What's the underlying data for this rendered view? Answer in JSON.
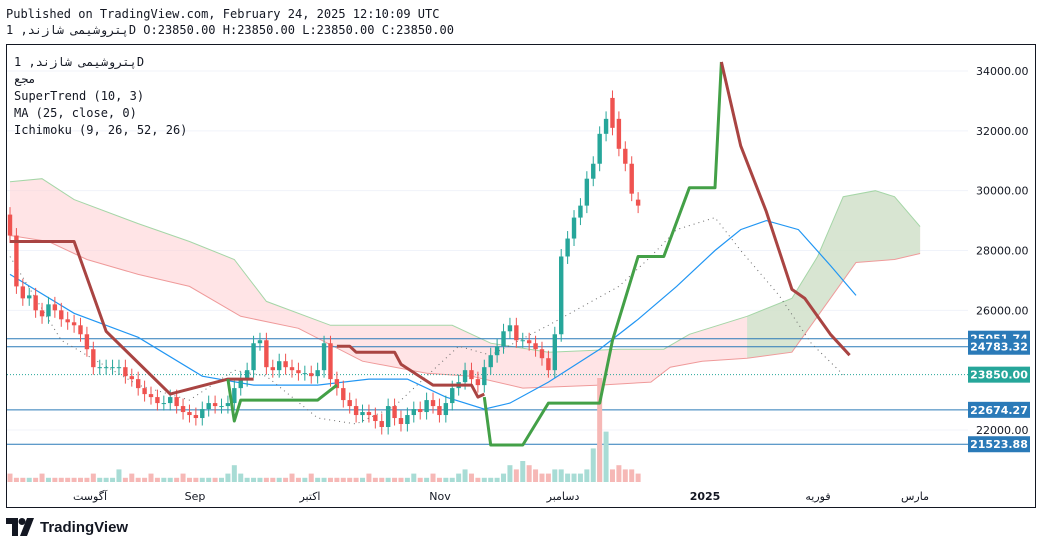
{
  "header": {
    "published": "Published on TradingView.com, February 24, 2025 12:10:09 UTC",
    "ohlc_line": "پتروشیمی شازند, 1D  O:23850.00 H:23850.00 L:23850.00 C:23850.00"
  },
  "legend": {
    "symbol": "پتروشیمی شازند, 1D",
    "sub": "مجع",
    "supertrend": "SuperTrend (10, 3)",
    "ma": "MA (25, close, 0)",
    "ichimoku": "Ichimoku (9, 26, 52, 26)"
  },
  "footer": {
    "brand": "TradingView"
  },
  "colors": {
    "up": "#26a69a",
    "down": "#ef5350",
    "supertrend_up": "#43a047",
    "supertrend_down": "#a94442",
    "ma": "#2196f3",
    "cloud_bull": "#c8e6c9",
    "cloud_bear": "#ffcdd2",
    "hline": "#2a7ab8"
  },
  "chart_data": {
    "type": "candlestick",
    "title": "پتروشیمی شازند, 1D",
    "x_ticks": [
      "آگوست",
      "Sep",
      "اکتبر",
      "Nov",
      "دسامبر",
      "2025",
      "فوریه",
      "مارس"
    ],
    "y_ticks": [
      "34000.00",
      "32000.00",
      "30000.00",
      "28000.00",
      "26000.00",
      "22000.00"
    ],
    "ylim": [
      20700,
      35400
    ],
    "price_labels": [
      {
        "value": 25051.74,
        "label": "25051.74",
        "color": "#2a7ab8"
      },
      {
        "value": 24783.32,
        "label": "24783.32",
        "color": "#2a7ab8"
      },
      {
        "value": 23850.0,
        "label": "23850.00",
        "color": "#26a69a"
      },
      {
        "value": 22674.27,
        "label": "22674.27",
        "color": "#2a7ab8"
      },
      {
        "value": 21523.88,
        "label": "21523.88",
        "color": "#2a7ab8"
      }
    ],
    "closes": [
      28500,
      26800,
      26400,
      26500,
      26000,
      25800,
      26200,
      26000,
      25700,
      25600,
      25500,
      25200,
      24700,
      24100,
      24100,
      24100,
      24100,
      24100,
      23800,
      23700,
      23400,
      23200,
      23100,
      22900,
      22900,
      23100,
      22800,
      22600,
      22500,
      22400,
      22700,
      22900,
      22800,
      22800,
      22900,
      23400,
      23700,
      24000,
      24900,
      25000,
      24100,
      24000,
      24300,
      24100,
      24000,
      23900,
      23900,
      23800,
      24000,
      24900,
      23700,
      23400,
      23000,
      22800,
      22500,
      22600,
      22500,
      22300,
      22100,
      22800,
      22400,
      22200,
      22500,
      22700,
      22600,
      23000,
      22800,
      22500,
      22900,
      23400,
      23600,
      24000,
      23700,
      23500,
      24100,
      24500,
      24800,
      25300,
      25500,
      25000,
      25000,
      24900,
      24700,
      24400,
      24000,
      25200,
      27800,
      28400,
      29100,
      29500,
      30400,
      30900,
      31900,
      32400,
      32100,
      31400,
      30900,
      29900,
      29500
    ],
    "opens": [
      29200,
      28500,
      26800,
      26400,
      26500,
      26000,
      25800,
      26200,
      26000,
      25700,
      25600,
      25500,
      25200,
      24700,
      24100,
      24100,
      24100,
      24100,
      24100,
      23800,
      23700,
      23400,
      23200,
      23100,
      22900,
      22900,
      23100,
      22800,
      22600,
      22500,
      22400,
      22700,
      22900,
      22800,
      22800,
      22900,
      23400,
      23700,
      24000,
      24900,
      25000,
      24100,
      24000,
      24300,
      24100,
      24000,
      23900,
      23900,
      23800,
      24000,
      24900,
      23700,
      23400,
      23000,
      22800,
      22500,
      22600,
      22500,
      22300,
      22100,
      22800,
      22400,
      22200,
      22500,
      22700,
      22600,
      23000,
      22800,
      22500,
      22900,
      23400,
      23600,
      24000,
      23700,
      23500,
      24100,
      24500,
      24800,
      25300,
      25500,
      25000,
      25000,
      24900,
      24700,
      24400,
      24000,
      25200,
      27800,
      28400,
      29100,
      29500,
      30400,
      30900,
      31900,
      33100,
      32400,
      31400,
      30900,
      29700
    ],
    "supertrend": [
      {
        "d": [
          [
            0,
            28300
          ],
          [
            10,
            28300
          ],
          [
            15,
            25300
          ],
          [
            25,
            23200
          ],
          [
            34,
            23700
          ],
          [
            38,
            23700
          ]
        ]
      },
      {
        "u": [
          [
            34,
            23700
          ],
          [
            35,
            22300
          ],
          [
            36,
            23000
          ],
          [
            48,
            23000
          ],
          [
            51,
            23500
          ]
        ]
      },
      {
        "d": [
          [
            51,
            24800
          ],
          [
            53,
            24800
          ],
          [
            54,
            24600
          ],
          [
            60,
            24600
          ],
          [
            61,
            24200
          ],
          [
            66,
            23500
          ],
          [
            72,
            23500
          ],
          [
            73,
            23100
          ],
          [
            74,
            23200
          ]
        ]
      },
      {
        "u": [
          [
            74,
            23100
          ],
          [
            75,
            21500
          ],
          [
            80,
            21500
          ],
          [
            84,
            22900
          ],
          [
            92,
            22900
          ],
          [
            94,
            25000
          ],
          [
            98,
            27800
          ],
          [
            102,
            27800
          ],
          [
            106,
            30100
          ],
          [
            110,
            30100
          ],
          [
            111,
            34300
          ]
        ]
      },
      {
        "d": [
          [
            111,
            34300
          ],
          [
            114,
            31500
          ],
          [
            118,
            29300
          ],
          [
            122,
            26700
          ],
          [
            124,
            26400
          ],
          [
            128,
            25200
          ],
          [
            131,
            24500
          ]
        ]
      }
    ],
    "ma": [
      [
        0,
        27200
      ],
      [
        10,
        25900
      ],
      [
        20,
        25100
      ],
      [
        30,
        23800
      ],
      [
        38,
        23500
      ],
      [
        48,
        23500
      ],
      [
        56,
        23700
      ],
      [
        62,
        23700
      ],
      [
        68,
        23100
      ],
      [
        74,
        22700
      ],
      [
        78,
        22900
      ],
      [
        84,
        23600
      ],
      [
        92,
        24700
      ],
      [
        98,
        25700
      ],
      [
        104,
        26800
      ],
      [
        110,
        28000
      ],
      [
        114,
        28700
      ],
      [
        118,
        29000
      ],
      [
        123,
        28700
      ],
      [
        128,
        27500
      ],
      [
        132,
        26500
      ]
    ],
    "cloud_upper": [
      [
        0,
        30300
      ],
      [
        5,
        30400
      ],
      [
        10,
        29700
      ],
      [
        20,
        28900
      ],
      [
        28,
        28300
      ],
      [
        35,
        27700
      ],
      [
        40,
        26300
      ],
      [
        50,
        25500
      ],
      [
        60,
        25500
      ],
      [
        69,
        25500
      ],
      [
        75,
        24900
      ],
      [
        84,
        24600
      ],
      [
        95,
        24700
      ],
      [
        102,
        24700
      ],
      [
        106,
        25200
      ],
      [
        115,
        25800
      ],
      [
        122,
        26400
      ],
      [
        126,
        27800
      ],
      [
        130,
        29800
      ],
      [
        135,
        30000
      ],
      [
        138,
        29800
      ],
      [
        142,
        28800
      ]
    ],
    "cloud_lower": [
      [
        0,
        28500
      ],
      [
        6,
        28300
      ],
      [
        12,
        27700
      ],
      [
        20,
        27200
      ],
      [
        28,
        26800
      ],
      [
        36,
        25800
      ],
      [
        45,
        25400
      ],
      [
        55,
        24300
      ],
      [
        65,
        23900
      ],
      [
        72,
        23800
      ],
      [
        80,
        23400
      ],
      [
        92,
        23500
      ],
      [
        100,
        23600
      ],
      [
        103,
        24100
      ],
      [
        108,
        24300
      ],
      [
        115,
        24400
      ],
      [
        122,
        24600
      ],
      [
        126,
        25800
      ],
      [
        132,
        27600
      ],
      [
        138,
        27700
      ],
      [
        142,
        27900
      ]
    ],
    "chikou": [
      [
        0,
        27800
      ],
      [
        8,
        25000
      ],
      [
        20,
        23500
      ],
      [
        28,
        23000
      ],
      [
        35,
        24000
      ],
      [
        40,
        23800
      ],
      [
        48,
        22400
      ],
      [
        54,
        22200
      ],
      [
        60,
        22800
      ],
      [
        65,
        23800
      ],
      [
        70,
        24800
      ],
      [
        75,
        24500
      ],
      [
        84,
        25500
      ],
      [
        95,
        26800
      ],
      [
        100,
        27800
      ],
      [
        104,
        28700
      ],
      [
        110,
        29100
      ],
      [
        114,
        28000
      ],
      [
        120,
        26500
      ],
      [
        125,
        24900
      ],
      [
        130,
        23850
      ]
    ],
    "volume": [
      2,
      1,
      1,
      1,
      1,
      2,
      1,
      1,
      1,
      1,
      1,
      1,
      1,
      2,
      1,
      1,
      1,
      3,
      1,
      2,
      1,
      1,
      2,
      1,
      1,
      1,
      1,
      2,
      1,
      1,
      1,
      1,
      1,
      1,
      2,
      4,
      2,
      1,
      1,
      1,
      1,
      1,
      1,
      1,
      2,
      1,
      1,
      2,
      1,
      1,
      1,
      1,
      1,
      1,
      1,
      1,
      2,
      1,
      1,
      1,
      1,
      1,
      1,
      2,
      1,
      1,
      2,
      1,
      1,
      1,
      2,
      3,
      2,
      1,
      1,
      1,
      1,
      2,
      4,
      3,
      5,
      4,
      3,
      2,
      2,
      3,
      3,
      2,
      2,
      2,
      3,
      8,
      9,
      12,
      3,
      4,
      3,
      3,
      2
    ]
  }
}
